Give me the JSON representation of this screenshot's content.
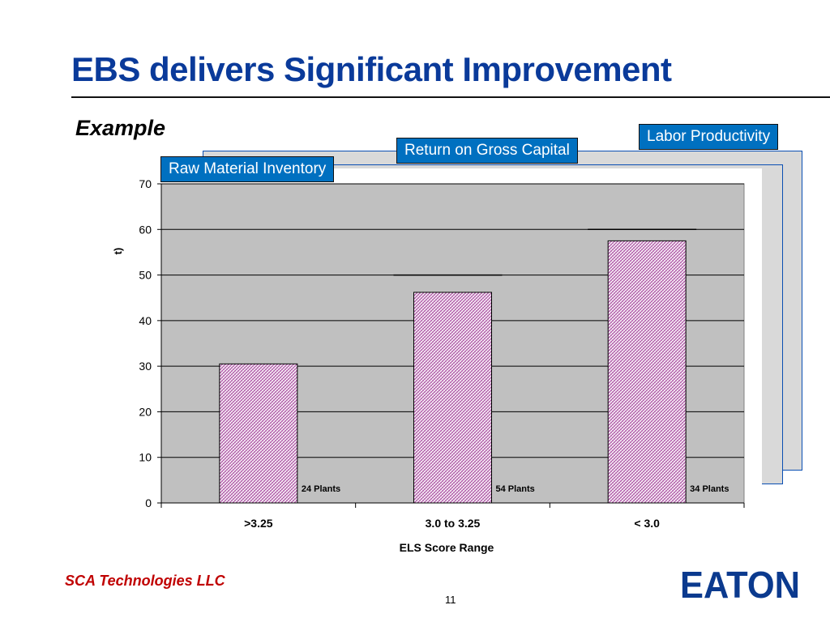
{
  "slide": {
    "title": "EBS delivers Significant Improvement",
    "subtitle": "Example",
    "footer_company": "SCA Technologies LLC",
    "page_number": "11",
    "logo_text": "EATON"
  },
  "tabs": {
    "labor": "Labor Productivity",
    "rogc": "Return on Gross Capital",
    "rmi": "Raw Material Inventory"
  },
  "colors": {
    "title": "#0a3a9a",
    "tab_bg": "#0070c0",
    "plot_bg": "#c0c0c0",
    "bar_fill": "#b05aa8",
    "footer": "#c00000",
    "logo": "#0b3a8e"
  },
  "chart_data": {
    "type": "bar",
    "categories": [
      ">3.25",
      "3.0 to 3.25",
      "< 3.0"
    ],
    "values": [
      30.5,
      46.2,
      57.5
    ],
    "target_lines": [
      null,
      50,
      60
    ],
    "bar_annotations": [
      "24 Plants",
      "54 Plants",
      "34 Plants"
    ],
    "xlabel": "ELS Score Range",
    "ylabel": "t)",
    "ylim": [
      0,
      70
    ],
    "yticks": [
      0,
      10,
      20,
      30,
      40,
      50,
      60,
      70
    ],
    "grid": true
  }
}
